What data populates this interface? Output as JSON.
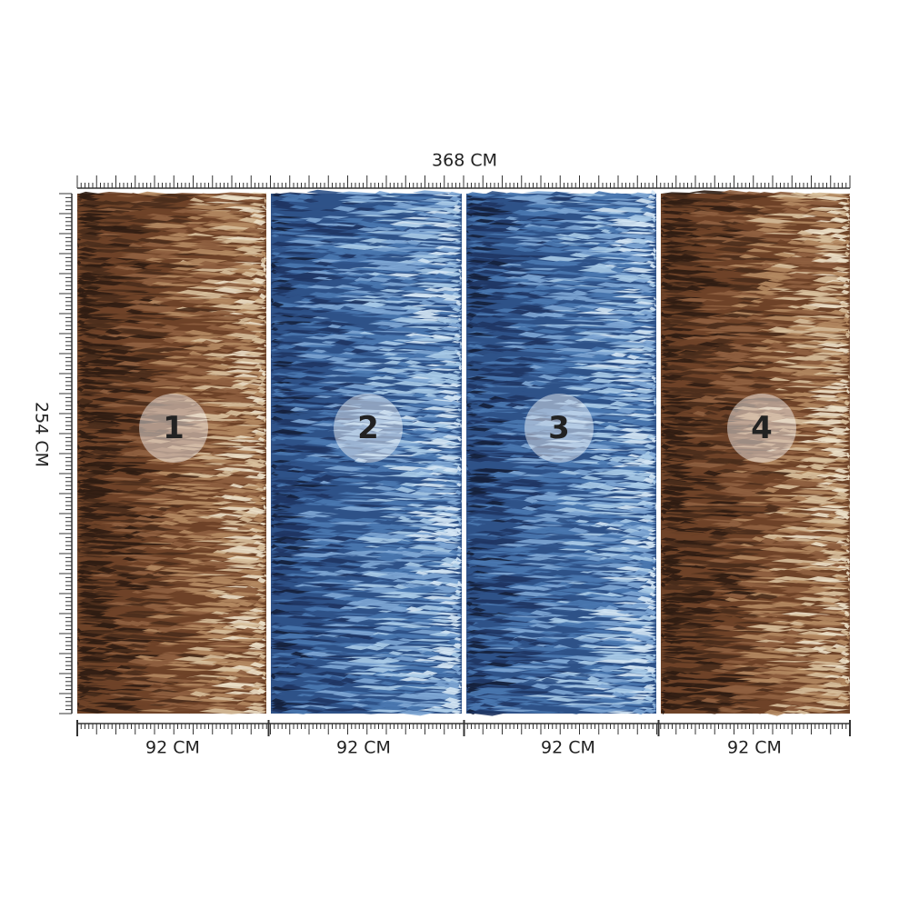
{
  "dimensions": {
    "width": "368 CM",
    "height": "254 CM"
  },
  "panels": [
    {
      "number": "1",
      "width": "92 CM"
    },
    {
      "number": "2",
      "width": "92 CM"
    },
    {
      "number": "3",
      "width": "92 CM"
    },
    {
      "number": "4",
      "width": "92 CM"
    }
  ]
}
